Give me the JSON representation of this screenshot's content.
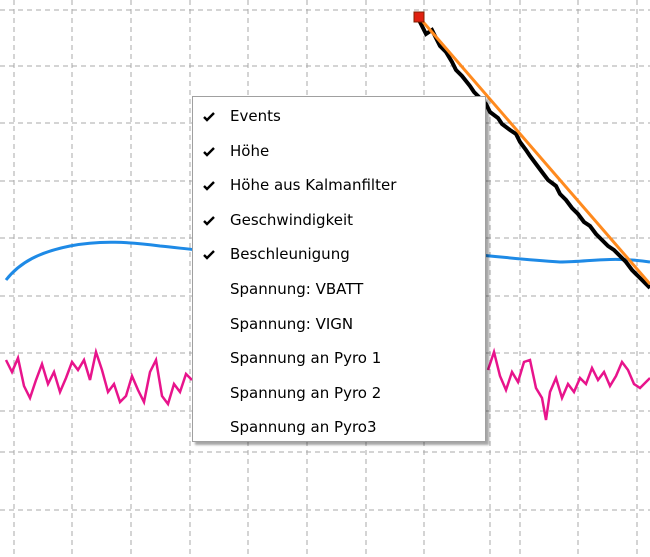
{
  "menu": {
    "items": [
      {
        "label": "Events",
        "checked": true
      },
      {
        "label": "Höhe",
        "checked": true
      },
      {
        "label": "Höhe aus Kalmanfilter",
        "checked": true
      },
      {
        "label": "Geschwindigkeit",
        "checked": true
      },
      {
        "label": "Beschleunigung",
        "checked": true
      },
      {
        "label": "Spannung: VBATT",
        "checked": false
      },
      {
        "label": "Spannung: VIGN",
        "checked": false
      },
      {
        "label": "Spannung an Pyro 1",
        "checked": false
      },
      {
        "label": "Spannung an Pyro 2",
        "checked": false
      },
      {
        "label": "Spannung an Pyro3",
        "checked": false
      }
    ]
  }
}
